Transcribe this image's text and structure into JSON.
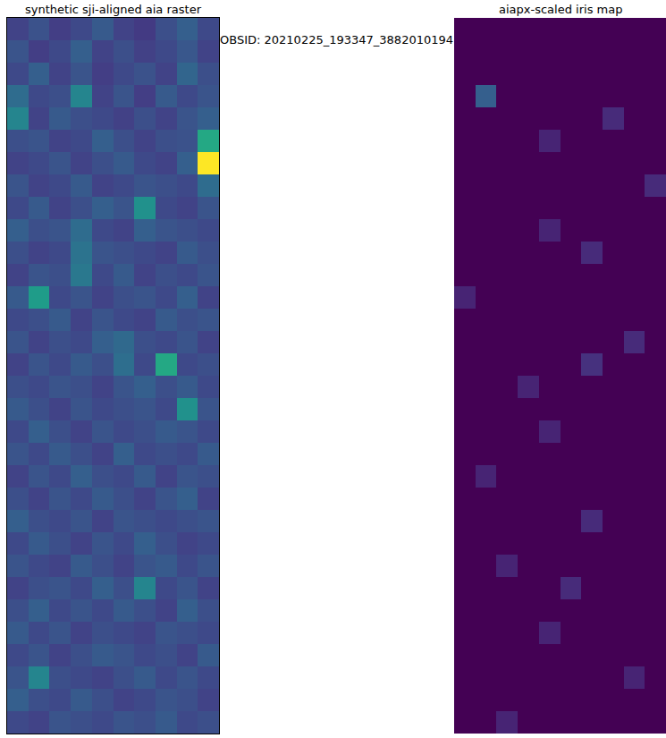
{
  "title": "OBSID: 20210225_193347_3882010194",
  "chart_data": [
    {
      "type": "heatmap",
      "title": "synthetic sji-aligned aia raster",
      "color": "viridis",
      "tick_labels": false,
      "zlim": [
        0,
        1
      ],
      "z": [
        [
          0.2,
          0.25,
          0.18,
          0.22,
          0.28,
          0.2,
          0.17,
          0.24,
          0.3,
          0.22
        ],
        [
          0.26,
          0.18,
          0.22,
          0.3,
          0.2,
          0.24,
          0.19,
          0.22,
          0.27,
          0.2
        ],
        [
          0.22,
          0.3,
          0.2,
          0.26,
          0.18,
          0.22,
          0.25,
          0.2,
          0.32,
          0.24
        ],
        [
          0.35,
          0.22,
          0.24,
          0.45,
          0.2,
          0.26,
          0.18,
          0.28,
          0.22,
          0.26
        ],
        [
          0.45,
          0.2,
          0.28,
          0.24,
          0.22,
          0.19,
          0.24,
          0.2,
          0.26,
          0.3
        ],
        [
          0.24,
          0.26,
          0.2,
          0.22,
          0.3,
          0.24,
          0.2,
          0.24,
          0.25,
          0.6
        ],
        [
          0.2,
          0.22,
          0.26,
          0.2,
          0.24,
          0.28,
          0.22,
          0.2,
          0.3,
          1.0
        ],
        [
          0.26,
          0.2,
          0.22,
          0.28,
          0.2,
          0.22,
          0.26,
          0.24,
          0.22,
          0.35
        ],
        [
          0.22,
          0.28,
          0.2,
          0.24,
          0.3,
          0.26,
          0.5,
          0.22,
          0.2,
          0.26
        ],
        [
          0.3,
          0.24,
          0.26,
          0.35,
          0.22,
          0.2,
          0.3,
          0.26,
          0.24,
          0.22
        ],
        [
          0.24,
          0.2,
          0.22,
          0.38,
          0.26,
          0.24,
          0.22,
          0.2,
          0.28,
          0.24
        ],
        [
          0.2,
          0.26,
          0.24,
          0.4,
          0.22,
          0.28,
          0.2,
          0.24,
          0.22,
          0.26
        ],
        [
          0.28,
          0.55,
          0.22,
          0.26,
          0.2,
          0.24,
          0.26,
          0.22,
          0.3,
          0.2
        ],
        [
          0.22,
          0.24,
          0.28,
          0.2,
          0.26,
          0.22,
          0.2,
          0.28,
          0.24,
          0.26
        ],
        [
          0.26,
          0.2,
          0.24,
          0.22,
          0.3,
          0.34,
          0.24,
          0.22,
          0.26,
          0.2
        ],
        [
          0.2,
          0.26,
          0.22,
          0.28,
          0.24,
          0.36,
          0.22,
          0.6,
          0.22,
          0.24
        ],
        [
          0.24,
          0.22,
          0.26,
          0.24,
          0.2,
          0.26,
          0.3,
          0.24,
          0.28,
          0.22
        ],
        [
          0.28,
          0.24,
          0.2,
          0.26,
          0.22,
          0.24,
          0.26,
          0.22,
          0.5,
          0.26
        ],
        [
          0.22,
          0.3,
          0.24,
          0.2,
          0.26,
          0.22,
          0.24,
          0.28,
          0.26,
          0.22
        ],
        [
          0.26,
          0.22,
          0.28,
          0.24,
          0.2,
          0.3,
          0.22,
          0.24,
          0.22,
          0.28
        ],
        [
          0.2,
          0.26,
          0.22,
          0.3,
          0.24,
          0.22,
          0.28,
          0.2,
          0.26,
          0.24
        ],
        [
          0.24,
          0.2,
          0.26,
          0.22,
          0.28,
          0.24,
          0.2,
          0.26,
          0.3,
          0.2
        ],
        [
          0.3,
          0.24,
          0.22,
          0.26,
          0.2,
          0.26,
          0.24,
          0.22,
          0.24,
          0.26
        ],
        [
          0.22,
          0.28,
          0.24,
          0.2,
          0.26,
          0.22,
          0.3,
          0.24,
          0.2,
          0.22
        ],
        [
          0.26,
          0.22,
          0.2,
          0.28,
          0.24,
          0.2,
          0.26,
          0.28,
          0.22,
          0.26
        ],
        [
          0.2,
          0.24,
          0.26,
          0.22,
          0.3,
          0.24,
          0.45,
          0.22,
          0.26,
          0.2
        ],
        [
          0.24,
          0.3,
          0.22,
          0.26,
          0.22,
          0.28,
          0.24,
          0.2,
          0.3,
          0.24
        ],
        [
          0.28,
          0.22,
          0.26,
          0.2,
          0.24,
          0.22,
          0.2,
          0.26,
          0.24,
          0.22
        ],
        [
          0.22,
          0.26,
          0.2,
          0.24,
          0.28,
          0.26,
          0.22,
          0.24,
          0.2,
          0.28
        ],
        [
          0.26,
          0.45,
          0.24,
          0.22,
          0.2,
          0.24,
          0.28,
          0.22,
          0.26,
          0.22
        ],
        [
          0.3,
          0.24,
          0.22,
          0.28,
          0.24,
          0.2,
          0.22,
          0.26,
          0.24,
          0.2
        ],
        [
          0.22,
          0.2,
          0.26,
          0.24,
          0.22,
          0.26,
          0.24,
          0.28,
          0.22,
          0.24
        ]
      ]
    },
    {
      "type": "heatmap",
      "title": "aiapx-scaled iris map",
      "color": "viridis",
      "tick_labels": false,
      "zlim": [
        0,
        1
      ],
      "z": [
        [
          0,
          0,
          0,
          0,
          0,
          0,
          0,
          0,
          0,
          0
        ],
        [
          0,
          0,
          0,
          0,
          0,
          0,
          0,
          0,
          0,
          0
        ],
        [
          0,
          0,
          0,
          0,
          0,
          0,
          0,
          0,
          0,
          0
        ],
        [
          0,
          0.3,
          0,
          0,
          0,
          0,
          0,
          0,
          0,
          0
        ],
        [
          0,
          0,
          0,
          0,
          0,
          0,
          0,
          0.12,
          0,
          0
        ],
        [
          0,
          0,
          0,
          0,
          0.1,
          0,
          0,
          0,
          0,
          0
        ],
        [
          0,
          0,
          0,
          0,
          0,
          0,
          0,
          0,
          0,
          0
        ],
        [
          0,
          0,
          0,
          0,
          0,
          0,
          0,
          0,
          0,
          0.12
        ],
        [
          0,
          0,
          0,
          0,
          0,
          0,
          0,
          0,
          0,
          0
        ],
        [
          0,
          0,
          0,
          0,
          0.1,
          0,
          0,
          0,
          0,
          0
        ],
        [
          0,
          0,
          0,
          0,
          0,
          0,
          0.12,
          0,
          0,
          0
        ],
        [
          0,
          0,
          0,
          0,
          0,
          0,
          0,
          0,
          0,
          0
        ],
        [
          0.1,
          0,
          0,
          0,
          0,
          0,
          0,
          0,
          0,
          0
        ],
        [
          0,
          0,
          0,
          0,
          0,
          0,
          0,
          0,
          0,
          0
        ],
        [
          0,
          0,
          0,
          0,
          0,
          0,
          0,
          0,
          0.12,
          0
        ],
        [
          0,
          0,
          0,
          0,
          0,
          0,
          0.14,
          0,
          0,
          0
        ],
        [
          0,
          0,
          0,
          0.1,
          0,
          0,
          0,
          0,
          0,
          0
        ],
        [
          0,
          0,
          0,
          0,
          0,
          0,
          0,
          0,
          0,
          0
        ],
        [
          0,
          0,
          0,
          0,
          0.1,
          0,
          0,
          0,
          0,
          0
        ],
        [
          0,
          0,
          0,
          0,
          0,
          0,
          0,
          0,
          0,
          0
        ],
        [
          0,
          0.1,
          0,
          0,
          0,
          0,
          0,
          0,
          0,
          0
        ],
        [
          0,
          0,
          0,
          0,
          0,
          0,
          0,
          0,
          0,
          0
        ],
        [
          0,
          0,
          0,
          0,
          0,
          0,
          0.12,
          0,
          0,
          0
        ],
        [
          0,
          0,
          0,
          0,
          0,
          0,
          0,
          0,
          0,
          0
        ],
        [
          0,
          0,
          0.1,
          0,
          0,
          0,
          0,
          0,
          0,
          0
        ],
        [
          0,
          0,
          0,
          0,
          0,
          0.12,
          0,
          0,
          0,
          0
        ],
        [
          0,
          0,
          0,
          0,
          0,
          0,
          0,
          0,
          0,
          0
        ],
        [
          0,
          0,
          0,
          0,
          0.1,
          0,
          0,
          0,
          0,
          0
        ],
        [
          0,
          0,
          0,
          0,
          0,
          0,
          0,
          0,
          0,
          0
        ],
        [
          0,
          0,
          0,
          0,
          0,
          0,
          0,
          0,
          0.1,
          0
        ],
        [
          0,
          0,
          0,
          0,
          0,
          0,
          0,
          0,
          0,
          0
        ],
        [
          0,
          0,
          0.1,
          0,
          0,
          0,
          0,
          0,
          0,
          0
        ]
      ]
    }
  ]
}
